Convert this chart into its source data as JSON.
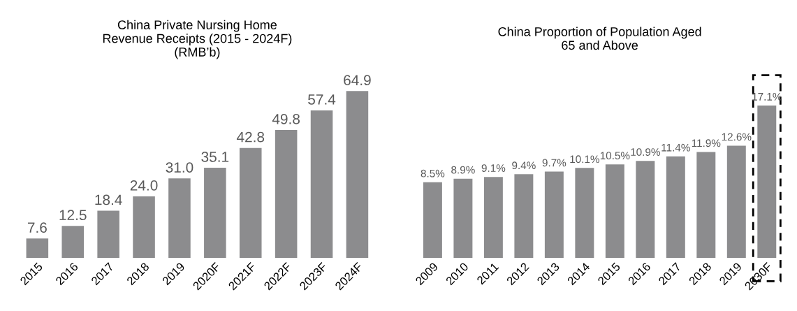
{
  "chart_data": [
    {
      "type": "bar",
      "title": "China Private Nursing Home\nRevenue Receipts (2015 - 2024F)\n(RMB’b)",
      "categories": [
        "2015",
        "2016",
        "2017",
        "2018",
        "2019",
        "2020F",
        "2021F",
        "2022F",
        "2023F",
        "2024F"
      ],
      "values": [
        7.6,
        12.5,
        18.4,
        24.0,
        31.0,
        35.1,
        42.8,
        49.8,
        57.4,
        64.9
      ],
      "value_labels": [
        "7.6",
        "12.5",
        "18.4",
        "24.0",
        "31.0",
        "35.1",
        "42.8",
        "49.8",
        "57.4",
        "64.9"
      ],
      "color": "#8c8c8e",
      "grid": false,
      "tick_labels": "x"
    },
    {
      "type": "bar",
      "title": "China Proportion of Population Aged\n65 and Above",
      "categories": [
        "2009",
        "2010",
        "2011",
        "2012",
        "2013",
        "2014",
        "2015",
        "2016",
        "2017",
        "2018",
        "2019",
        "2030F"
      ],
      "values": [
        8.5,
        8.9,
        9.1,
        9.4,
        9.7,
        10.1,
        10.5,
        10.9,
        11.4,
        11.9,
        12.6,
        17.1
      ],
      "value_labels": [
        "8.5%",
        "8.9%",
        "9.1%",
        "9.4%",
        "9.7%",
        "10.1%",
        "10.5%",
        "10.9%",
        "11.4%",
        "11.9%",
        "12.6%",
        "17.1%"
      ],
      "color": "#8c8c8e",
      "grid": false,
      "tick_labels": "x"
    }
  ]
}
